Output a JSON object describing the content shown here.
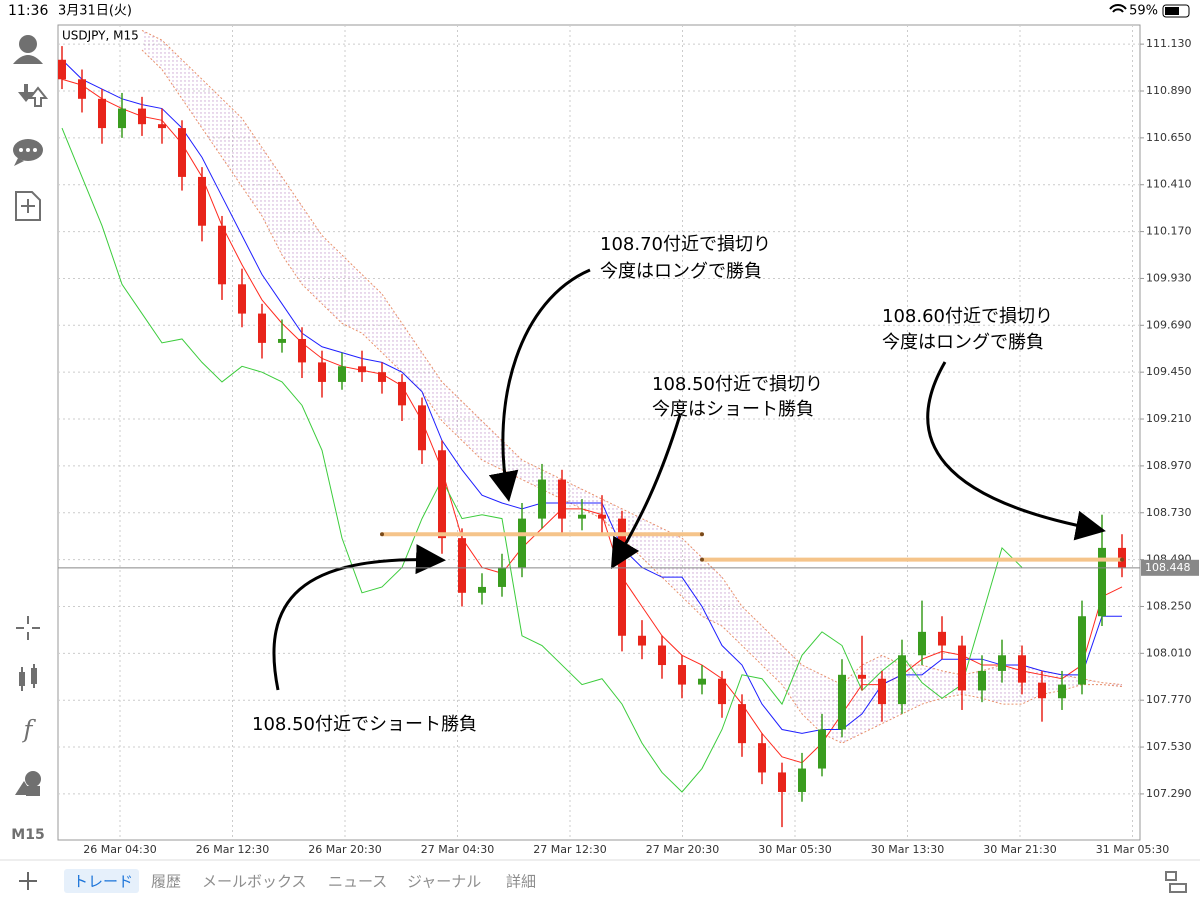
{
  "status_bar": {
    "time": "11:36",
    "date": "3月31日(火)",
    "battery": "59%"
  },
  "toolbar": {
    "timeframe": "M15"
  },
  "tabs": [
    "トレード",
    "履歴",
    "メールボックス",
    "ニュース",
    "ジャーナル",
    "詳細"
  ],
  "chart_data": {
    "type": "candlestick",
    "title": "USDJPY, M15",
    "ylim": [
      107.054,
      111.228
    ],
    "yticks": [
      {
        "value": 111.13,
        "label": "111.130"
      },
      {
        "value": 110.89,
        "label": "110.890"
      },
      {
        "value": 110.65,
        "label": "110.650"
      },
      {
        "value": 110.41,
        "label": "110.410"
      },
      {
        "value": 110.17,
        "label": "110.170"
      },
      {
        "value": 109.93,
        "label": "109.930"
      },
      {
        "value": 109.69,
        "label": "109.690"
      },
      {
        "value": 109.45,
        "label": "109.450"
      },
      {
        "value": 109.21,
        "label": "109.210"
      },
      {
        "value": 108.97,
        "label": "108.970"
      },
      {
        "value": 108.73,
        "label": "108.730"
      },
      {
        "value": 108.49,
        "label": "108.490"
      },
      {
        "value": 108.25,
        "label": "108.250"
      },
      {
        "value": 108.01,
        "label": "108.010"
      },
      {
        "value": 107.77,
        "label": "107.770"
      },
      {
        "value": 107.53,
        "label": "107.530"
      },
      {
        "value": 107.29,
        "label": "107.290"
      }
    ],
    "xtick_labels": [
      "26 Mar 04:30",
      "26 Mar 12:30",
      "26 Mar 20:30",
      "27 Mar 04:30",
      "27 Mar 12:30",
      "27 Mar 20:30",
      "30 Mar 05:30",
      "30 Mar 13:30",
      "30 Mar 21:30",
      "31 Mar 05:30"
    ],
    "grid": true,
    "up_color": "#3a9c1f",
    "down_color": "#e8241a",
    "candles": [
      [
        111.05,
        111.12,
        110.9,
        110.95
      ],
      [
        110.95,
        111.0,
        110.78,
        110.85
      ],
      [
        110.85,
        110.9,
        110.62,
        110.7
      ],
      [
        110.7,
        110.88,
        110.65,
        110.8
      ],
      [
        110.8,
        110.86,
        110.66,
        110.72
      ],
      [
        110.72,
        110.8,
        110.62,
        110.7
      ],
      [
        110.7,
        110.74,
        110.38,
        110.45
      ],
      [
        110.45,
        110.5,
        110.12,
        110.2
      ],
      [
        110.2,
        110.25,
        109.82,
        109.9
      ],
      [
        109.9,
        109.98,
        109.68,
        109.75
      ],
      [
        109.75,
        109.8,
        109.52,
        109.6
      ],
      [
        109.6,
        109.72,
        109.55,
        109.62
      ],
      [
        109.62,
        109.68,
        109.42,
        109.5
      ],
      [
        109.5,
        109.56,
        109.32,
        109.4
      ],
      [
        109.4,
        109.55,
        109.36,
        109.48
      ],
      [
        109.48,
        109.56,
        109.4,
        109.45
      ],
      [
        109.45,
        109.5,
        109.34,
        109.4
      ],
      [
        109.4,
        109.44,
        109.2,
        109.28
      ],
      [
        109.28,
        109.32,
        108.98,
        109.05
      ],
      [
        109.05,
        109.1,
        108.52,
        108.6
      ],
      [
        108.6,
        108.65,
        108.25,
        108.32
      ],
      [
        108.32,
        108.42,
        108.26,
        108.35
      ],
      [
        108.35,
        108.52,
        108.3,
        108.45
      ],
      [
        108.45,
        108.78,
        108.4,
        108.7
      ],
      [
        108.7,
        108.98,
        108.65,
        108.9
      ],
      [
        108.9,
        108.95,
        108.62,
        108.7
      ],
      [
        108.7,
        108.8,
        108.64,
        108.72
      ],
      [
        108.72,
        108.82,
        108.62,
        108.7
      ],
      [
        108.7,
        108.74,
        108.02,
        108.1
      ],
      [
        108.1,
        108.18,
        107.98,
        108.05
      ],
      [
        108.05,
        108.1,
        107.88,
        107.95
      ],
      [
        107.95,
        108.0,
        107.78,
        107.85
      ],
      [
        107.85,
        107.95,
        107.8,
        107.88
      ],
      [
        107.88,
        107.92,
        107.68,
        107.75
      ],
      [
        107.75,
        107.8,
        107.48,
        107.55
      ],
      [
        107.55,
        107.6,
        107.34,
        107.4
      ],
      [
        107.4,
        107.45,
        107.12,
        107.3
      ],
      [
        107.3,
        107.5,
        107.25,
        107.42
      ],
      [
        107.42,
        107.7,
        107.38,
        107.62
      ],
      [
        107.62,
        107.98,
        107.58,
        107.9
      ],
      [
        107.9,
        108.1,
        107.82,
        107.88
      ],
      [
        107.88,
        107.92,
        107.66,
        107.75
      ],
      [
        107.75,
        108.08,
        107.7,
        108.0
      ],
      [
        108.0,
        108.28,
        107.95,
        108.12
      ],
      [
        108.12,
        108.2,
        107.98,
        108.05
      ],
      [
        108.05,
        108.1,
        107.72,
        107.82
      ],
      [
        107.82,
        108.0,
        107.76,
        107.92
      ],
      [
        107.92,
        108.08,
        107.86,
        108.0
      ],
      [
        108.0,
        108.05,
        107.8,
        107.86
      ],
      [
        107.86,
        107.92,
        107.66,
        107.78
      ],
      [
        107.78,
        107.92,
        107.72,
        107.85
      ],
      [
        107.85,
        108.28,
        107.8,
        108.2
      ],
      [
        108.2,
        108.72,
        108.15,
        108.55
      ],
      [
        108.55,
        108.62,
        108.4,
        108.45
      ]
    ],
    "series": [
      {
        "color": "#ff2a1f",
        "values": [
          110.95,
          110.92,
          110.85,
          110.8,
          110.76,
          110.74,
          110.62,
          110.45,
          110.2,
          110.0,
          109.82,
          109.7,
          109.6,
          109.52,
          109.48,
          109.46,
          109.44,
          109.38,
          109.2,
          108.95,
          108.6,
          108.45,
          108.42,
          108.55,
          108.65,
          108.75,
          108.75,
          108.72,
          108.4,
          108.25,
          108.1,
          108.0,
          107.95,
          107.88,
          107.75,
          107.6,
          107.48,
          107.45,
          107.55,
          107.7,
          107.85,
          107.85,
          107.9,
          107.98,
          108.02,
          108.0,
          107.95,
          107.95,
          107.92,
          107.9,
          107.88,
          107.95,
          108.3,
          108.35
        ]
      },
      {
        "color": "#1f1fff",
        "values": [
          111.05,
          110.95,
          110.9,
          110.85,
          110.82,
          110.8,
          110.7,
          110.55,
          110.35,
          110.15,
          109.95,
          109.8,
          109.65,
          109.58,
          109.55,
          109.52,
          109.5,
          109.45,
          109.35,
          109.1,
          108.95,
          108.82,
          108.78,
          108.75,
          108.78,
          108.78,
          108.78,
          108.78,
          108.55,
          108.45,
          108.4,
          108.4,
          108.25,
          108.05,
          107.95,
          107.75,
          107.62,
          107.6,
          107.62,
          107.62,
          107.7,
          107.85,
          107.9,
          107.9,
          107.98,
          107.98,
          107.98,
          107.95,
          107.95,
          107.92,
          107.9,
          107.9,
          108.2,
          108.2
        ]
      },
      {
        "color": "#3ccc3c",
        "values": [
          110.7,
          110.45,
          110.2,
          109.9,
          109.75,
          109.6,
          109.62,
          109.5,
          109.4,
          109.48,
          109.45,
          109.4,
          109.28,
          109.05,
          108.6,
          108.32,
          108.35,
          108.45,
          108.7,
          108.9,
          108.7,
          108.72,
          108.7,
          108.1,
          108.05,
          107.95,
          107.85,
          107.88,
          107.75,
          107.55,
          107.4,
          107.3,
          107.42,
          107.62,
          107.9,
          107.88,
          107.75,
          108.0,
          108.12,
          108.05,
          107.82,
          107.92,
          108.0,
          107.86,
          107.78,
          107.85,
          108.2,
          108.55,
          108.45,
          null,
          null,
          null,
          null,
          null
        ]
      }
    ],
    "cloud": {
      "color": "#e8906a",
      "span_a": [
        null,
        null,
        null,
        null,
        111.2,
        111.15,
        111.05,
        110.95,
        110.85,
        110.75,
        110.6,
        110.45,
        110.3,
        110.15,
        110.05,
        109.95,
        109.85,
        109.7,
        109.55,
        109.4,
        109.3,
        109.2,
        109.1,
        109.0,
        108.95,
        108.9,
        108.85,
        108.8,
        108.75,
        108.7,
        108.65,
        108.6,
        108.5,
        108.4,
        108.25,
        108.15,
        108.05,
        107.95,
        107.9,
        107.85,
        107.95,
        108.0,
        107.95,
        107.95,
        107.92,
        107.9,
        107.92,
        107.95,
        107.95,
        107.92,
        107.9,
        107.88,
        107.86,
        107.85
      ],
      "span_b": [
        null,
        null,
        null,
        null,
        111.1,
        111.0,
        110.85,
        110.7,
        110.55,
        110.4,
        110.25,
        110.05,
        109.9,
        109.8,
        109.7,
        109.65,
        109.55,
        109.45,
        109.35,
        109.2,
        109.1,
        109.0,
        108.95,
        108.9,
        108.85,
        108.8,
        108.75,
        108.7,
        108.6,
        108.5,
        108.4,
        108.3,
        108.2,
        108.15,
        108.05,
        107.95,
        107.85,
        107.7,
        107.6,
        107.55,
        107.6,
        107.65,
        107.7,
        107.75,
        107.78,
        107.8,
        107.78,
        107.75,
        107.75,
        107.8,
        107.82,
        107.85,
        107.85,
        107.84
      ]
    },
    "levels": [
      {
        "value": 108.62,
        "from": 16,
        "to": 32
      },
      {
        "value": 108.49,
        "from": 32,
        "to": 53
      }
    ],
    "current_price": 108.448,
    "annotations": [
      {
        "lines": [
          "108.70付近で損切り",
          "今度はロングで勝負"
        ]
      },
      {
        "lines": [
          "108.60付近で損切り",
          "今度はロングで勝負"
        ]
      },
      {
        "lines": [
          "108.50付近で損切り",
          "今度はショート勝負"
        ]
      },
      {
        "lines": [
          "108.50付近でショート勝負"
        ]
      }
    ]
  }
}
